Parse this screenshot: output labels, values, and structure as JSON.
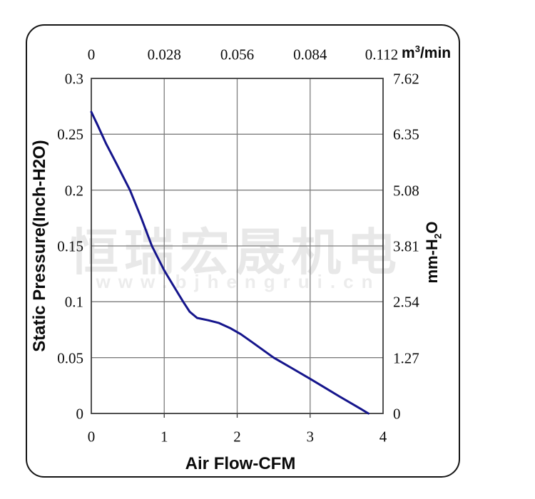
{
  "watermark": {
    "cn": "恒瑞宏晟机电",
    "url": "www.bjhengrui.cn"
  },
  "chart_data": {
    "type": "line",
    "title": "",
    "grid": true,
    "legend": "none",
    "x_bottom": {
      "label": "Air Flow-CFM",
      "ticks": [
        "0",
        "1",
        "2",
        "3",
        "4"
      ],
      "range": [
        0,
        4
      ]
    },
    "x_top": {
      "unit_parts": {
        "pre": "m",
        "sup": "3",
        "post": "/min"
      },
      "ticks": [
        "0",
        "0.028",
        "0.056",
        "0.084",
        "0.112"
      ],
      "range": [
        0,
        0.112
      ]
    },
    "y_left": {
      "label": "Static Pressure(Inch-H2O)",
      "ticks": [
        "0.3",
        "0.25",
        "0.2",
        "0.15",
        "0.1",
        "0.05",
        "0"
      ],
      "range": [
        0,
        0.3
      ]
    },
    "y_right": {
      "label_parts": {
        "pre": "mm-H",
        "sub": "2",
        "post": "O"
      },
      "ticks": [
        "7.62",
        "6.35",
        "5.08",
        "3.81",
        "2.54",
        "1.27",
        "0"
      ],
      "range": [
        0,
        7.62
      ]
    },
    "series": [
      {
        "name": "static-pressure-vs-airflow",
        "x_unit": "CFM",
        "y_unit": "Inch-H2O",
        "points": [
          [
            0,
            0.27
          ],
          [
            0.08,
            0.259
          ],
          [
            0.2,
            0.242
          ],
          [
            0.35,
            0.223
          ],
          [
            0.53,
            0.2
          ],
          [
            0.68,
            0.176
          ],
          [
            0.83,
            0.15
          ],
          [
            1.0,
            0.128
          ],
          [
            1.13,
            0.114
          ],
          [
            1.26,
            0.1
          ],
          [
            1.35,
            0.091
          ],
          [
            1.45,
            0.0855
          ],
          [
            1.6,
            0.0835
          ],
          [
            1.75,
            0.081
          ],
          [
            1.9,
            0.0765
          ],
          [
            2.05,
            0.071
          ],
          [
            2.2,
            0.064
          ],
          [
            2.35,
            0.057
          ],
          [
            2.5,
            0.05
          ],
          [
            2.75,
            0.0405
          ],
          [
            3.0,
            0.031
          ],
          [
            3.2,
            0.0232
          ],
          [
            3.4,
            0.0153
          ],
          [
            3.6,
            0.0077
          ],
          [
            3.8,
            0
          ]
        ]
      }
    ]
  },
  "colors": {
    "curve": "#15158c",
    "grid": "#7e7e7e",
    "plot_border": "#3c3c3c",
    "frame_border": "#141414",
    "tick_text": "#0d0d0d",
    "watermark_cn": "#e8e8e8",
    "watermark_url": "#ececec"
  }
}
